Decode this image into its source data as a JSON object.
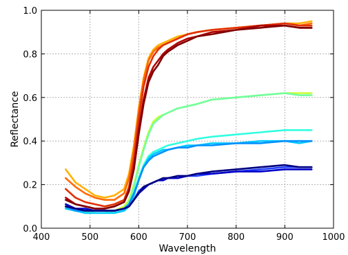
{
  "chart_data": {
    "type": "line",
    "title": "",
    "xlabel": "Wavelength",
    "ylabel": "Reflectance",
    "xlim": [
      400,
      1000
    ],
    "ylim": [
      0.0,
      1.0
    ],
    "x_ticks": [
      400,
      500,
      600,
      700,
      800,
      900,
      1000
    ],
    "y_ticks": [
      0.0,
      0.2,
      0.4,
      0.6,
      0.8,
      1.0
    ],
    "x_tick_labels": [
      "400",
      "500",
      "600",
      "700",
      "800",
      "900",
      "1000"
    ],
    "y_tick_labels": [
      "0.0",
      "0.2",
      "0.4",
      "0.6",
      "0.8",
      "1.0"
    ],
    "grid": true,
    "x": [
      450,
      470,
      490,
      510,
      530,
      550,
      570,
      580,
      590,
      600,
      610,
      620,
      630,
      640,
      650,
      660,
      680,
      700,
      720,
      750,
      800,
      850,
      900,
      930,
      955
    ],
    "series": [
      {
        "color": "#ffb000",
        "values": [
          0.27,
          0.21,
          0.18,
          0.15,
          0.14,
          0.15,
          0.18,
          0.25,
          0.38,
          0.55,
          0.69,
          0.78,
          0.82,
          0.84,
          0.85,
          0.86,
          0.88,
          0.89,
          0.9,
          0.91,
          0.92,
          0.93,
          0.94,
          0.94,
          0.95
        ]
      },
      {
        "color": "#ff6a00",
        "values": [
          0.23,
          0.19,
          0.16,
          0.14,
          0.13,
          0.13,
          0.16,
          0.23,
          0.36,
          0.54,
          0.68,
          0.77,
          0.81,
          0.83,
          0.84,
          0.85,
          0.87,
          0.89,
          0.9,
          0.91,
          0.92,
          0.93,
          0.94,
          0.93,
          0.94
        ]
      },
      {
        "color": "#e03000",
        "values": [
          0.18,
          0.14,
          0.12,
          0.11,
          0.1,
          0.11,
          0.13,
          0.19,
          0.32,
          0.5,
          0.65,
          0.74,
          0.79,
          0.82,
          0.84,
          0.85,
          0.87,
          0.89,
          0.9,
          0.91,
          0.92,
          0.93,
          0.94,
          0.93,
          0.93
        ]
      },
      {
        "color": "#b00000",
        "values": [
          0.14,
          0.11,
          0.1,
          0.09,
          0.09,
          0.1,
          0.12,
          0.17,
          0.28,
          0.45,
          0.59,
          0.69,
          0.74,
          0.77,
          0.8,
          0.82,
          0.85,
          0.87,
          0.88,
          0.9,
          0.91,
          0.93,
          0.93,
          0.92,
          0.92
        ]
      },
      {
        "color": "#800000",
        "values": [
          0.13,
          0.11,
          0.1,
          0.09,
          0.09,
          0.1,
          0.12,
          0.17,
          0.27,
          0.43,
          0.57,
          0.67,
          0.72,
          0.75,
          0.79,
          0.81,
          0.84,
          0.86,
          0.88,
          0.89,
          0.91,
          0.92,
          0.93,
          0.92,
          0.92
        ]
      },
      {
        "color": "#c8ff30",
        "values": [
          0.11,
          0.09,
          0.08,
          0.08,
          0.08,
          0.08,
          0.1,
          0.13,
          0.2,
          0.29,
          0.37,
          0.44,
          0.49,
          0.51,
          0.52,
          0.53,
          0.55,
          0.56,
          0.57,
          0.59,
          0.6,
          0.61,
          0.62,
          0.62,
          0.62
        ]
      },
      {
        "color": "#70ffa0",
        "values": [
          0.1,
          0.08,
          0.08,
          0.07,
          0.07,
          0.08,
          0.09,
          0.12,
          0.19,
          0.28,
          0.36,
          0.43,
          0.48,
          0.5,
          0.52,
          0.53,
          0.55,
          0.56,
          0.57,
          0.59,
          0.6,
          0.61,
          0.62,
          0.61,
          0.61
        ]
      },
      {
        "color": "#30ffe0",
        "values": [
          0.09,
          0.08,
          0.07,
          0.07,
          0.07,
          0.07,
          0.08,
          0.11,
          0.16,
          0.23,
          0.29,
          0.33,
          0.35,
          0.36,
          0.37,
          0.38,
          0.39,
          0.4,
          0.41,
          0.42,
          0.43,
          0.44,
          0.45,
          0.45,
          0.45
        ]
      },
      {
        "color": "#00c8ff",
        "values": [
          0.09,
          0.08,
          0.07,
          0.07,
          0.07,
          0.07,
          0.08,
          0.1,
          0.15,
          0.22,
          0.28,
          0.32,
          0.34,
          0.35,
          0.36,
          0.36,
          0.37,
          0.38,
          0.38,
          0.39,
          0.39,
          0.4,
          0.4,
          0.39,
          0.4
        ]
      },
      {
        "color": "#0090ff",
        "values": [
          0.1,
          0.08,
          0.08,
          0.08,
          0.08,
          0.08,
          0.09,
          0.11,
          0.16,
          0.22,
          0.28,
          0.31,
          0.33,
          0.34,
          0.35,
          0.36,
          0.37,
          0.37,
          0.38,
          0.38,
          0.39,
          0.39,
          0.4,
          0.4,
          0.4
        ]
      },
      {
        "color": "#2040ff",
        "values": [
          0.1,
          0.09,
          0.08,
          0.08,
          0.08,
          0.08,
          0.09,
          0.1,
          0.13,
          0.17,
          0.19,
          0.2,
          0.21,
          0.22,
          0.22,
          0.23,
          0.23,
          0.24,
          0.24,
          0.25,
          0.26,
          0.27,
          0.28,
          0.28,
          0.28
        ]
      },
      {
        "color": "#0000c8",
        "values": [
          0.11,
          0.09,
          0.09,
          0.08,
          0.08,
          0.08,
          0.09,
          0.1,
          0.13,
          0.16,
          0.18,
          0.2,
          0.21,
          0.22,
          0.22,
          0.23,
          0.23,
          0.24,
          0.25,
          0.25,
          0.26,
          0.26,
          0.27,
          0.27,
          0.27
        ]
      },
      {
        "color": "#000080",
        "values": [
          0.1,
          0.09,
          0.08,
          0.08,
          0.08,
          0.08,
          0.09,
          0.1,
          0.13,
          0.16,
          0.19,
          0.2,
          0.21,
          0.22,
          0.23,
          0.23,
          0.24,
          0.24,
          0.25,
          0.26,
          0.27,
          0.28,
          0.29,
          0.28,
          0.28
        ]
      }
    ]
  }
}
